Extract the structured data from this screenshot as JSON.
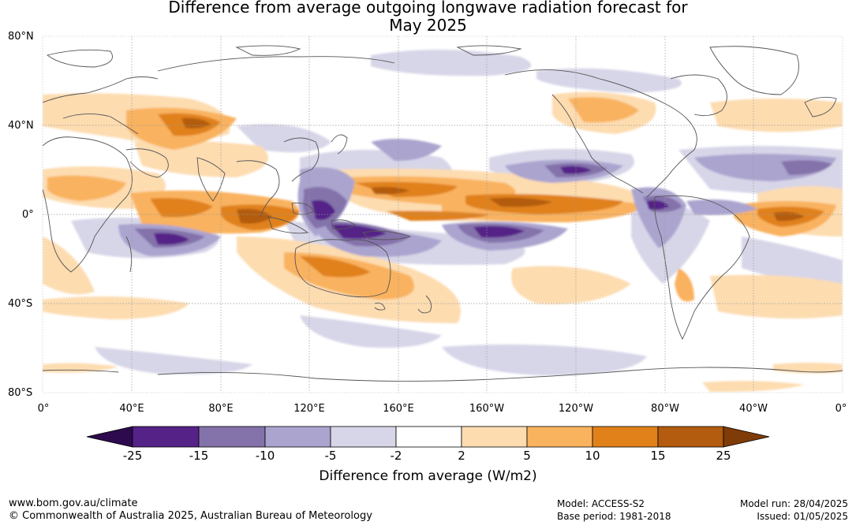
{
  "title": {
    "line1": "Difference from average outgoing longwave radiation forecast for",
    "line2": "May 2025"
  },
  "map": {
    "lat_labels": [
      "80°N",
      "40°N",
      "0°",
      "40°S",
      "80°S"
    ],
    "lon_labels": [
      "0°",
      "40°E",
      "80°E",
      "120°E",
      "160°E",
      "160°W",
      "120°W",
      "80°W",
      "40°W",
      "0°"
    ]
  },
  "colorbar": {
    "ticks": [
      "-25",
      "-15",
      "-10",
      "-5",
      "-2",
      "2",
      "5",
      "10",
      "15",
      "25"
    ],
    "colors": [
      "#2d0a4e",
      "#552288",
      "#8472aa",
      "#aba4cf",
      "#d7d6e8",
      "#ffffff",
      "#fddcb0",
      "#f9b25e",
      "#e0811a",
      "#b35b0e",
      "#7f3b08"
    ],
    "title": "Difference from average (W/m2)"
  },
  "footer": {
    "website": "www.bom.gov.au/climate",
    "copyright": "© Commonwealth of Australia 2025, Australian Bureau of Meteorology",
    "model": "Model: ACCESS-S2",
    "base_period": "Base period: 1981-2018",
    "model_run": "Model run: 28/04/2025",
    "issued": "Issued: 01/05/2025"
  }
}
